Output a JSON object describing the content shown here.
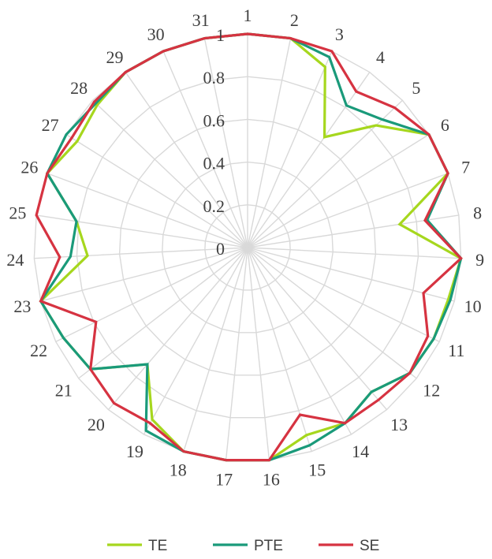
{
  "chart_data": {
    "type": "radar",
    "categories": [
      "1",
      "2",
      "3",
      "4",
      "5",
      "6",
      "7",
      "8",
      "9",
      "10",
      "11",
      "12",
      "13",
      "14",
      "15",
      "16",
      "17",
      "18",
      "19",
      "20",
      "21",
      "22",
      "23",
      "24",
      "25",
      "26",
      "27",
      "28",
      "29",
      "30",
      "31"
    ],
    "radial_ticks": [
      "0",
      "0.2",
      "0.4",
      "0.6",
      "0.8",
      "1"
    ],
    "rlim": [
      0,
      1
    ],
    "grid": true,
    "legend_position": "bottom",
    "series": [
      {
        "name": "TE",
        "color": "#a6d71e",
        "values": [
          1,
          1,
          0.92,
          0.63,
          0.83,
          1,
          1,
          0.72,
          1,
          0.97,
          0.97,
          0.96,
          0.89,
          0.94,
          0.92,
          1,
          1,
          1,
          0.92,
          0.72,
          0.93,
          0.96,
          1,
          0.75,
          0.81,
          1,
          0.94,
          0.97,
          1,
          1,
          1
        ]
      },
      {
        "name": "PTE",
        "color": "#1a9a7a",
        "values": [
          1,
          1,
          0.97,
          0.81,
          0.87,
          1,
          1,
          0.85,
          1,
          0.98,
          0.97,
          0.96,
          0.89,
          0.94,
          0.97,
          1,
          1,
          1,
          0.98,
          0.72,
          0.93,
          0.96,
          1,
          0.83,
          0.81,
          1,
          1,
          0.98,
          1,
          1,
          1
        ]
      },
      {
        "name": "SE",
        "color": "#d63341",
        "values": [
          1,
          1,
          1,
          0.89,
          0.95,
          1,
          1,
          0.84,
          1,
          0.85,
          0.94,
          0.96,
          0.94,
          0.94,
          0.82,
          1,
          1,
          1,
          0.94,
          0.96,
          0.93,
          0.79,
          1,
          0.88,
          1,
          1,
          0.97,
          0.99,
          1,
          1,
          1
        ]
      }
    ]
  }
}
